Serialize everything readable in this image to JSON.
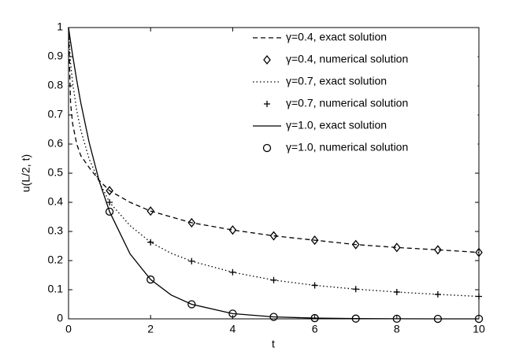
{
  "chart_data": {
    "type": "line",
    "xlabel": "t",
    "ylabel": "u(L/2, t)",
    "xlim": [
      0,
      10
    ],
    "ylim": [
      0,
      1
    ],
    "xticks": [
      0,
      2,
      4,
      6,
      8,
      10
    ],
    "yticks": [
      0,
      0.1,
      0.2,
      0.3,
      0.4,
      0.5,
      0.6,
      0.7,
      0.8,
      0.9,
      1
    ],
    "legend": "upper right",
    "series": [
      {
        "name": "γ=0.4, exact solution",
        "color": "#000000",
        "line_style": "dashed",
        "x": [
          0,
          0.05,
          0.1,
          0.2,
          0.3,
          0.5,
          0.75,
          1,
          1.5,
          2,
          2.5,
          3,
          4,
          5,
          6,
          7,
          8,
          9,
          10
        ],
        "values": [
          1,
          0.74,
          0.67,
          0.6,
          0.56,
          0.52,
          0.475,
          0.44,
          0.4,
          0.37,
          0.35,
          0.33,
          0.305,
          0.285,
          0.27,
          0.255,
          0.245,
          0.237,
          0.228
        ]
      },
      {
        "name": "γ=0.4, numerical solution",
        "color": "#000000",
        "marker": "diamond",
        "x": [
          1,
          2,
          3,
          4,
          5,
          6,
          7,
          8,
          9,
          10
        ],
        "values": [
          0.44,
          0.37,
          0.33,
          0.305,
          0.285,
          0.27,
          0.255,
          0.245,
          0.237,
          0.228
        ]
      },
      {
        "name": "γ=0.7, exact solution",
        "color": "#000000",
        "line_style": "dotted",
        "x": [
          0,
          0.05,
          0.1,
          0.2,
          0.3,
          0.5,
          0.75,
          1,
          1.5,
          2,
          2.5,
          3,
          4,
          5,
          6,
          7,
          8,
          9,
          10
        ],
        "values": [
          1,
          0.877,
          0.81,
          0.715,
          0.647,
          0.55,
          0.47,
          0.4,
          0.32,
          0.263,
          0.225,
          0.198,
          0.16,
          0.133,
          0.115,
          0.102,
          0.092,
          0.084,
          0.077
        ]
      },
      {
        "name": "γ=0.7, numerical solution",
        "color": "#000000",
        "marker": "plus",
        "x": [
          1,
          2,
          3,
          4,
          5,
          6,
          7,
          8,
          9,
          10
        ],
        "values": [
          0.4,
          0.263,
          0.198,
          0.16,
          0.133,
          0.115,
          0.102,
          0.092,
          0.084,
          0.077
        ]
      },
      {
        "name": "γ=1.0, exact solution",
        "color": "#000000",
        "line_style": "solid",
        "x": [
          0,
          0.05,
          0.1,
          0.2,
          0.3,
          0.5,
          0.75,
          1,
          1.5,
          2,
          2.5,
          3,
          4,
          5,
          6,
          7,
          8,
          9,
          10
        ],
        "values": [
          1,
          0.951,
          0.905,
          0.819,
          0.741,
          0.607,
          0.472,
          0.368,
          0.223,
          0.135,
          0.082,
          0.05,
          0.018,
          0.0067,
          0.0025,
          0.0009,
          0.0003,
          0.0001,
          5e-05
        ]
      },
      {
        "name": "γ=1.0, numerical solution",
        "color": "#000000",
        "marker": "circle",
        "x": [
          1,
          2,
          3,
          4,
          5,
          6,
          7,
          8,
          9,
          10
        ],
        "values": [
          0.368,
          0.135,
          0.05,
          0.018,
          0.0067,
          0.0025,
          0.0009,
          0.0003,
          0.0001,
          5e-05
        ]
      }
    ]
  }
}
